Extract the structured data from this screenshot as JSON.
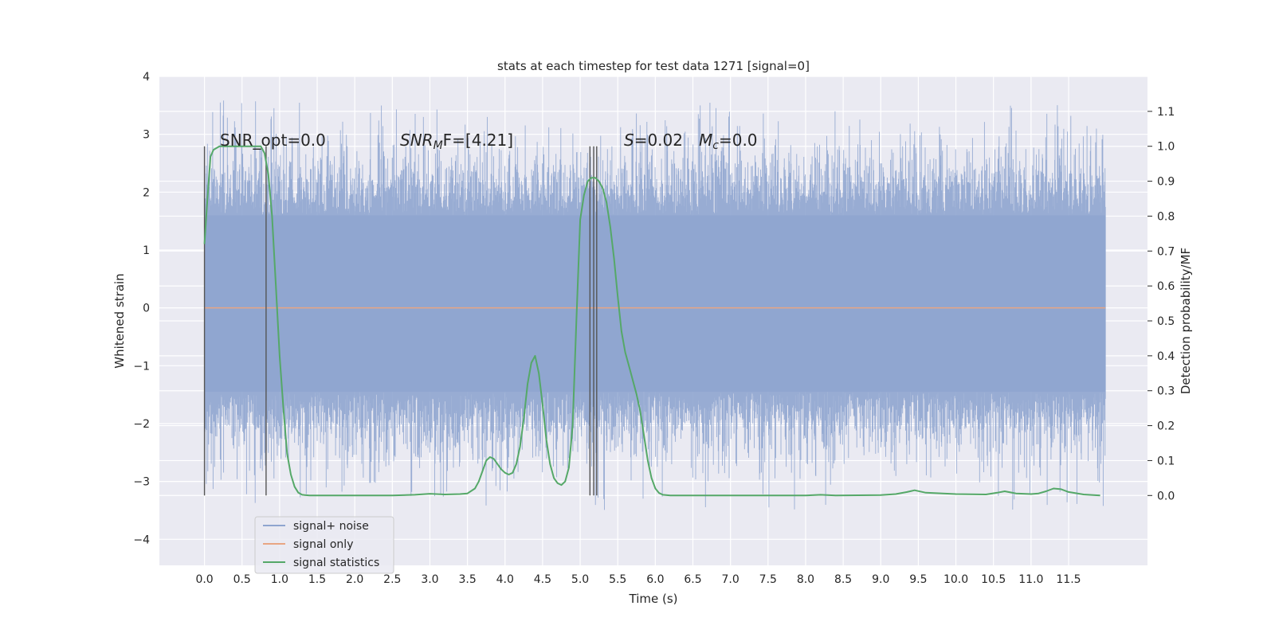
{
  "chart_data": {
    "type": "line",
    "title": "stats at each timestep for test data 1271 [signal=0]",
    "xlabel": "Time (s)",
    "ylabel": "Whitened strain",
    "ylabel_right": "Detection probability/MF",
    "xlim": [
      -0.6,
      12.55
    ],
    "ylim": [
      -4.45,
      4.0
    ],
    "ylim_right": [
      -0.2,
      1.2
    ],
    "x_ticks": [
      0.0,
      0.5,
      1.0,
      1.5,
      2.0,
      2.5,
      3.0,
      3.5,
      4.0,
      4.5,
      5.0,
      5.5,
      6.0,
      6.5,
      7.0,
      7.5,
      8.0,
      8.5,
      9.0,
      9.5,
      10.0,
      10.5,
      11.0,
      11.5
    ],
    "x_tick_labels": [
      "0.0",
      "0.5",
      "1.0",
      "1.5",
      "2.0",
      "2.5",
      "3.0",
      "3.5",
      "4.0",
      "4.5",
      "5.0",
      "5.5",
      "6.0",
      "6.5",
      "7.0",
      "7.5",
      "8.0",
      "8.5",
      "9.0",
      "9.5",
      "10.0",
      "10.5",
      "11.0",
      "11.5"
    ],
    "y_ticks": [
      4,
      3,
      2,
      1,
      0,
      -1,
      -2,
      -3,
      -4
    ],
    "y_tick_labels": [
      "4",
      "3",
      "2",
      "1",
      "0",
      "−1",
      "−2",
      "−3",
      "−4"
    ],
    "y_right_ticks": [
      1.1,
      1.0,
      0.9,
      0.8,
      0.7,
      0.6,
      0.5,
      0.4,
      0.3,
      0.2,
      0.1,
      0.0
    ],
    "y_right_tick_labels": [
      "1.1",
      "1.0",
      "0.9",
      "0.8",
      "0.7",
      "0.6",
      "0.5",
      "0.4",
      "0.3",
      "0.2",
      "0.1",
      "0.0"
    ],
    "grid": true,
    "legend_position": "bottom-left",
    "series": [
      {
        "name": "signal+ noise",
        "color": "#8fa5cf",
        "x_range": [
          0.0,
          11.99
        ],
        "band_core": [
          -1.45,
          1.6
        ],
        "band_extent": [
          -3.55,
          3.6
        ]
      },
      {
        "name": "signal only",
        "color": "#e8a583",
        "x": [
          0.0,
          11.99
        ],
        "y": [
          0.0,
          0.0
        ]
      },
      {
        "name": "signal statistics",
        "color": "#55a868",
        "axis": "right",
        "x": [
          0.0,
          0.04,
          0.08,
          0.12,
          0.2,
          0.3,
          0.4,
          0.5,
          0.6,
          0.7,
          0.75,
          0.8,
          0.85,
          0.9,
          0.95,
          1.0,
          1.05,
          1.1,
          1.15,
          1.2,
          1.25,
          1.3,
          1.4,
          1.6,
          2.0,
          2.5,
          2.8,
          3.0,
          3.2,
          3.4,
          3.5,
          3.6,
          3.65,
          3.7,
          3.75,
          3.8,
          3.85,
          3.9,
          3.95,
          4.0,
          4.05,
          4.1,
          4.15,
          4.2,
          4.25,
          4.3,
          4.35,
          4.4,
          4.45,
          4.5,
          4.55,
          4.6,
          4.65,
          4.7,
          4.75,
          4.8,
          4.85,
          4.9,
          4.95,
          5.0,
          5.05,
          5.1,
          5.15,
          5.2,
          5.25,
          5.3,
          5.35,
          5.4,
          5.45,
          5.5,
          5.55,
          5.6,
          5.65,
          5.7,
          5.75,
          5.8,
          5.85,
          5.9,
          5.95,
          6.0,
          6.05,
          6.1,
          6.2,
          6.5,
          7.0,
          7.5,
          8.0,
          8.2,
          8.4,
          9.0,
          9.2,
          9.35,
          9.45,
          9.6,
          10.0,
          10.4,
          10.55,
          10.65,
          10.8,
          11.0,
          11.1,
          11.2,
          11.3,
          11.4,
          11.5,
          11.7,
          11.92
        ],
        "y": [
          0.72,
          0.85,
          0.97,
          0.99,
          1.0,
          1.0,
          1.0,
          1.0,
          1.0,
          1.0,
          1.0,
          0.98,
          0.92,
          0.8,
          0.6,
          0.4,
          0.25,
          0.12,
          0.06,
          0.025,
          0.008,
          0.002,
          0.0,
          0.0,
          0.0,
          0.0,
          0.002,
          0.005,
          0.003,
          0.004,
          0.006,
          0.02,
          0.04,
          0.07,
          0.1,
          0.11,
          0.105,
          0.09,
          0.075,
          0.065,
          0.06,
          0.065,
          0.09,
          0.14,
          0.22,
          0.32,
          0.38,
          0.4,
          0.35,
          0.26,
          0.16,
          0.09,
          0.05,
          0.035,
          0.03,
          0.04,
          0.08,
          0.2,
          0.5,
          0.79,
          0.86,
          0.9,
          0.91,
          0.91,
          0.9,
          0.88,
          0.84,
          0.77,
          0.68,
          0.57,
          0.47,
          0.41,
          0.37,
          0.33,
          0.29,
          0.24,
          0.17,
          0.1,
          0.05,
          0.02,
          0.007,
          0.002,
          0.0,
          0.0,
          0.0,
          0.0,
          0.0,
          0.002,
          0.0,
          0.001,
          0.004,
          0.01,
          0.015,
          0.008,
          0.004,
          0.003,
          0.008,
          0.012,
          0.006,
          0.004,
          0.006,
          0.012,
          0.02,
          0.018,
          0.01,
          0.003,
          0.0
        ]
      }
    ],
    "vertical_markers_x": [
      0.0,
      0.82,
      5.13,
      5.18,
      5.22
    ],
    "annotations": {
      "snr_opt": "SNR_opt=0.0",
      "snr_mf_symbol": "SNR",
      "snr_mf_sub": "M",
      "snr_mf_rest": "F=[4.21]",
      "s_symbol": "S",
      "s_value": "=0.02",
      "mc_symbol": "M",
      "mc_sub": "c",
      "mc_value": "=0.0"
    }
  }
}
